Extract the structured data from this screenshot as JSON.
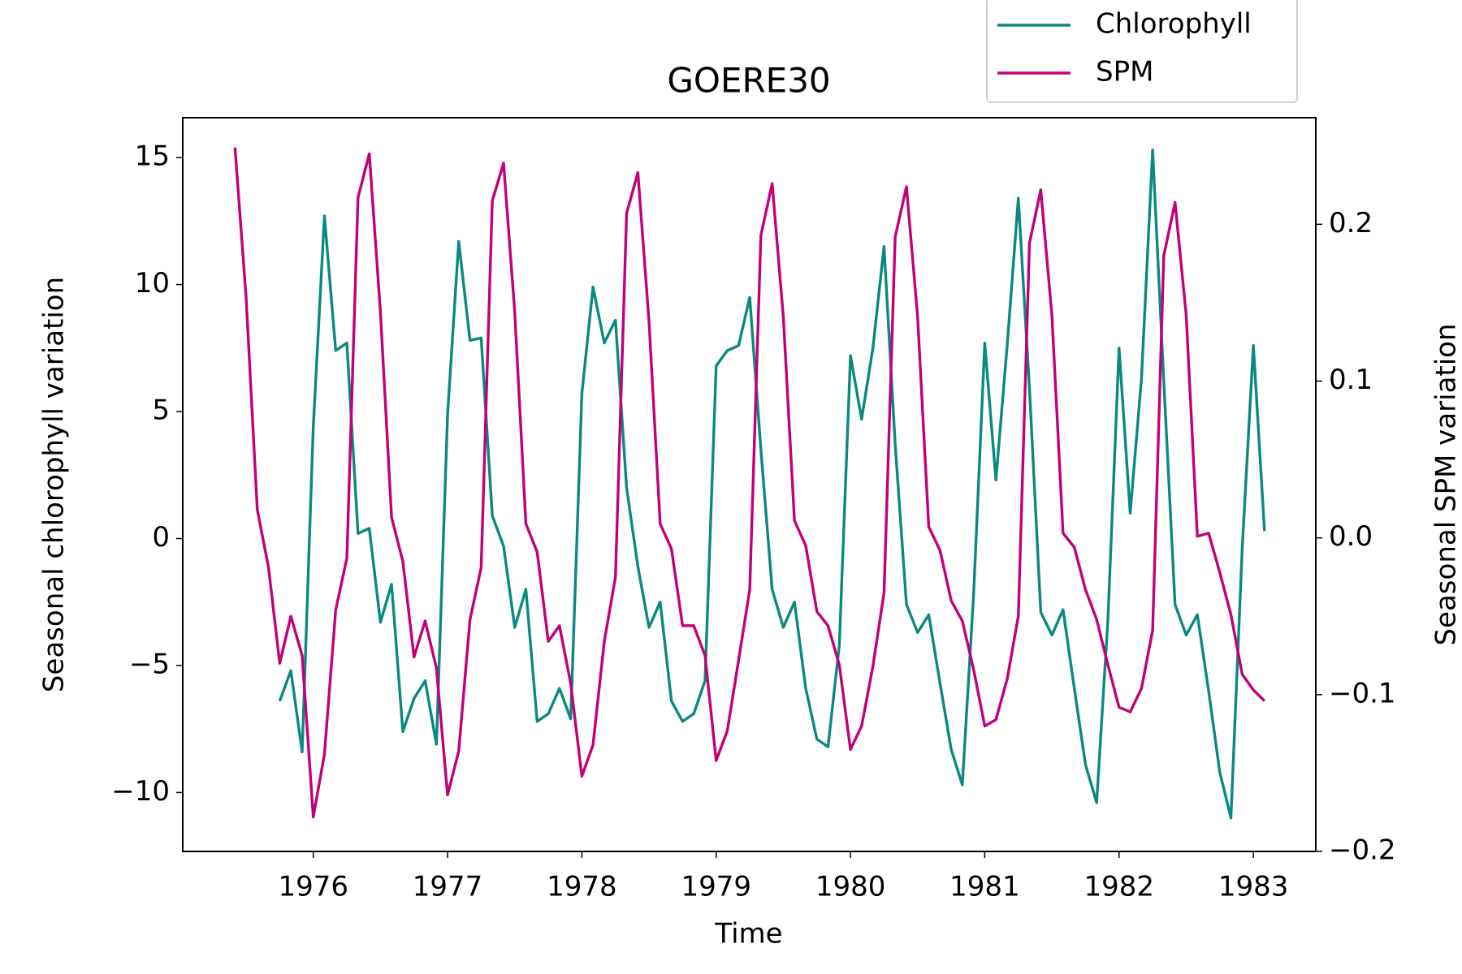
{
  "chart_data": {
    "type": "line",
    "title": "GOERE30",
    "x_label": "Time",
    "y_label": "Seasonal chlorophyll variation",
    "y2_label": "Seasonal SPM variation",
    "legend": "upper right",
    "x": [
      1975.417,
      1975.5,
      1975.583,
      1975.667,
      1975.75,
      1975.833,
      1975.917,
      1976,
      1976.083,
      1976.167,
      1976.25,
      1976.333,
      1976.417,
      1976.5,
      1976.583,
      1976.667,
      1976.75,
      1976.833,
      1976.917,
      1977,
      1977.083,
      1977.167,
      1977.25,
      1977.333,
      1977.417,
      1977.5,
      1977.583,
      1977.667,
      1977.75,
      1977.833,
      1977.917,
      1978,
      1978.083,
      1978.167,
      1978.25,
      1978.333,
      1978.417,
      1978.5,
      1978.583,
      1978.667,
      1978.75,
      1978.833,
      1978.917,
      1979,
      1979.083,
      1979.167,
      1979.25,
      1979.333,
      1979.417,
      1979.5,
      1979.583,
      1979.667,
      1979.75,
      1979.833,
      1979.917,
      1980,
      1980.083,
      1980.167,
      1980.25,
      1980.333,
      1980.417,
      1980.5,
      1980.583,
      1980.667,
      1980.75,
      1980.833,
      1980.917,
      1981,
      1981.083,
      1981.167,
      1981.25,
      1981.333,
      1981.417,
      1981.5,
      1981.583,
      1981.667,
      1981.75,
      1981.833,
      1981.917,
      1982,
      1982.083,
      1982.167,
      1982.25,
      1982.333,
      1982.417,
      1982.5,
      1982.583,
      1982.667,
      1982.75,
      1982.833,
      1982.917,
      1983,
      1983.083
    ],
    "series": [
      {
        "name": "Chlorophyll",
        "color": "#0a8a7e",
        "axis": "y",
        "values": [
          null,
          null,
          null,
          null,
          -6.4,
          -5.2,
          -8.4,
          4.4,
          12.7,
          7.4,
          7.7,
          0.2,
          0.4,
          -3.3,
          -1.8,
          -7.6,
          -6.3,
          -5.6,
          -8.1,
          4.9,
          11.7,
          7.8,
          7.9,
          0.9,
          -0.3,
          -3.5,
          -2.0,
          -7.2,
          -6.9,
          -5.9,
          -7.1,
          5.7,
          9.9,
          7.7,
          8.6,
          2.0,
          -1.1,
          -3.5,
          -2.5,
          -6.4,
          -7.2,
          -6.9,
          -5.6,
          6.8,
          7.4,
          7.6,
          9.5,
          3.5,
          -2.0,
          -3.5,
          -2.5,
          -5.9,
          -7.9,
          -8.2,
          -4.2,
          7.2,
          4.7,
          7.5,
          11.5,
          3.7,
          -2.6,
          -3.7,
          -3.0,
          -5.7,
          -8.3,
          -9.7,
          -2.2,
          7.7,
          2.3,
          7.6,
          13.4,
          5.9,
          -2.9,
          -3.8,
          -2.8,
          -5.9,
          -8.9,
          -10.4,
          -3.2,
          7.5,
          1.0,
          6.3,
          15.3,
          6.2,
          -2.6,
          -3.8,
          -3.0,
          -6.0,
          -9.2,
          -11.0,
          -0.4,
          7.6,
          0.3
        ]
      },
      {
        "name": "SPM",
        "color": "#c20078",
        "axis": "y2",
        "values": [
          0.249,
          0.153,
          0.018,
          -0.019,
          -0.08,
          -0.05,
          -0.075,
          -0.178,
          -0.138,
          -0.046,
          -0.013,
          0.217,
          0.245,
          0.144,
          0.013,
          -0.015,
          -0.076,
          -0.053,
          -0.083,
          -0.164,
          -0.136,
          -0.052,
          -0.019,
          0.215,
          0.239,
          0.144,
          0.009,
          -0.009,
          -0.066,
          -0.056,
          -0.093,
          -0.152,
          -0.132,
          -0.066,
          -0.025,
          0.207,
          0.233,
          0.138,
          0.009,
          -0.007,
          -0.056,
          -0.056,
          -0.075,
          -0.142,
          -0.123,
          -0.078,
          -0.033,
          0.193,
          0.226,
          0.141,
          0.011,
          -0.005,
          -0.047,
          -0.056,
          -0.081,
          -0.135,
          -0.12,
          -0.082,
          -0.035,
          0.192,
          0.224,
          0.141,
          0.007,
          -0.008,
          -0.04,
          -0.053,
          -0.084,
          -0.12,
          -0.116,
          -0.09,
          -0.05,
          0.188,
          0.222,
          0.142,
          0.003,
          -0.006,
          -0.033,
          -0.052,
          -0.081,
          -0.108,
          -0.111,
          -0.096,
          -0.059,
          0.18,
          0.214,
          0.142,
          0.001,
          0.003,
          -0.022,
          -0.049,
          -0.087,
          -0.097,
          -0.104
        ]
      }
    ],
    "xlim": [
      1975.028,
      1983.465
    ],
    "xticks": [
      1976,
      1977,
      1978,
      1979,
      1980,
      1981,
      1982,
      1983
    ],
    "ylim": [
      -12.32,
      16.57
    ],
    "yticks": [
      {
        "value": -10,
        "label": "−10"
      },
      {
        "value": -5,
        "label": "−5"
      },
      0,
      5,
      10,
      15
    ],
    "y2lim": [
      -0.2,
      0.268
    ],
    "y2ticks": [
      {
        "value": -0.2,
        "label": "−0.2"
      },
      {
        "value": -0.1,
        "label": "−0.1"
      },
      {
        "value": 0,
        "label": "0.0"
      },
      0.1,
      0.2
    ]
  }
}
